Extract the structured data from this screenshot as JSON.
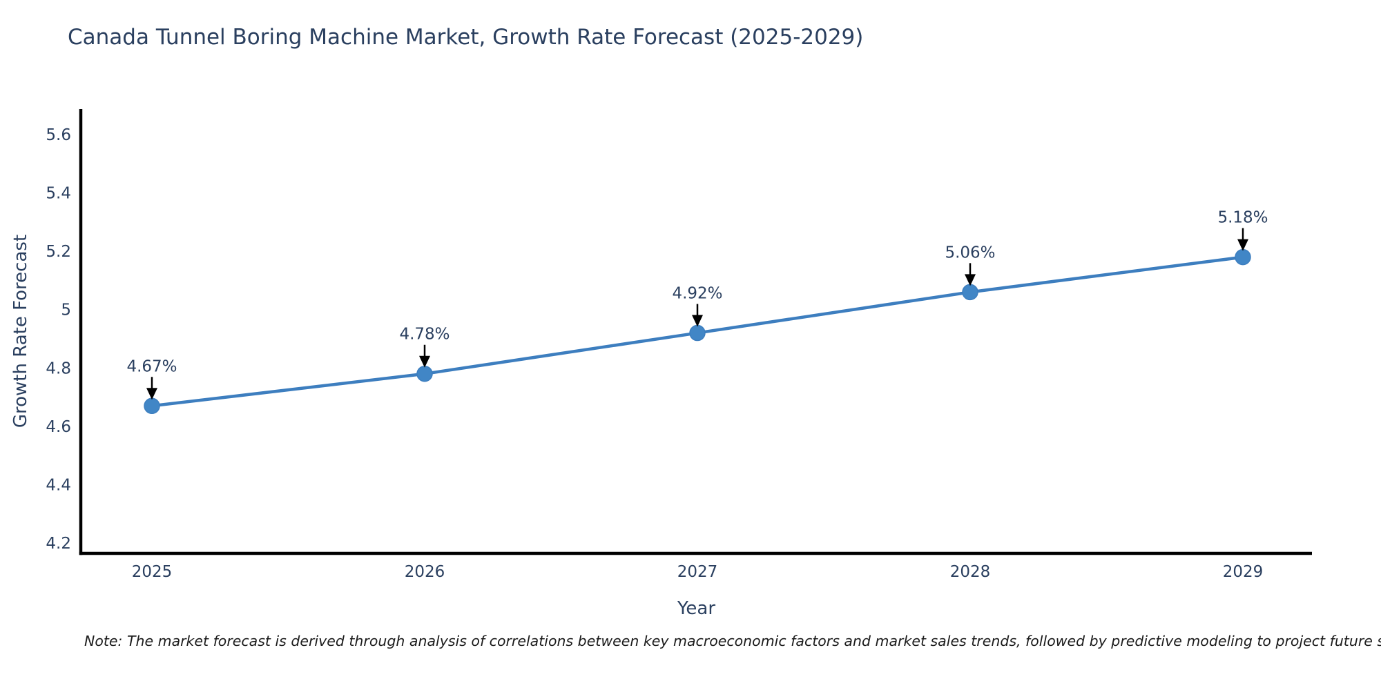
{
  "chart_data": {
    "type": "line",
    "title": "Canada Tunnel Boring Machine Market, Growth Rate Forecast (2025-2029)",
    "xlabel": "Year",
    "ylabel": "Growth Rate Forecast",
    "categories": [
      "2025",
      "2026",
      "2027",
      "2028",
      "2029"
    ],
    "series": [
      {
        "name": "Growth Rate Forecast",
        "values": [
          4.67,
          4.78,
          4.92,
          5.06,
          5.18
        ],
        "point_labels": [
          "4.67%",
          "4.78%",
          "4.92%",
          "5.06%",
          "5.18%"
        ]
      }
    ],
    "ylim": [
      4.2,
      5.6
    ],
    "yticks": [
      5.6,
      5.4,
      5.2,
      5.0,
      4.8,
      4.6,
      4.4,
      4.2
    ],
    "ytick_labels": [
      "5.6",
      "5.4",
      "5.2",
      "5",
      "4.8",
      "4.6",
      "4.4",
      "4.2"
    ],
    "grid": false,
    "legend": false,
    "annotation_style": "value-label-with-down-arrow",
    "note": "Note: The market forecast is derived through analysis of correlations between key macroeconomic factors and market sales trends, followed by predictive modeling to project future sales",
    "colors": {
      "line": "#3d7ebf",
      "marker": "#4186c6",
      "axis": "#000000",
      "text": "#2a3f5f",
      "arrow": "#000000",
      "note_text": "#1c1c1c",
      "background": "#ffffff"
    }
  }
}
